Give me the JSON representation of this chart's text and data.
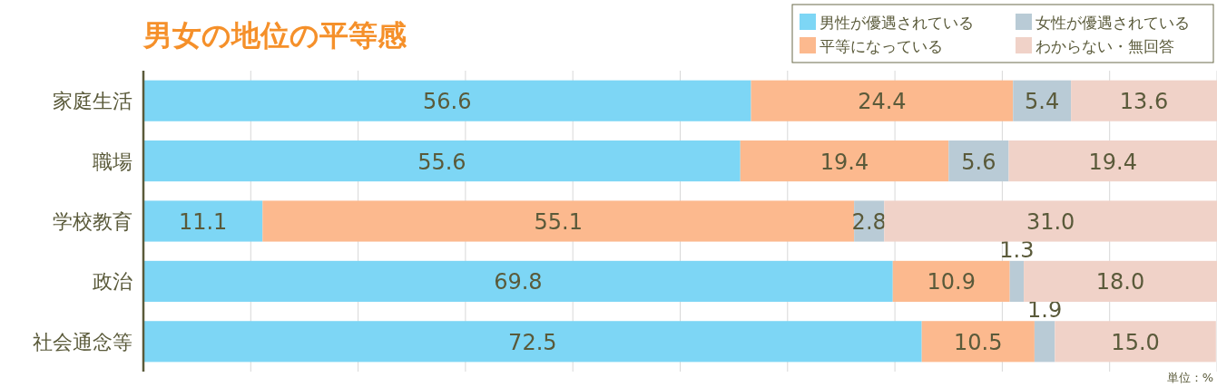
{
  "chart_data": {
    "type": "bar",
    "title": "男女の地位の平等感",
    "orientation": "horizontal",
    "stacked": true,
    "categories": [
      "家庭生活",
      "職場",
      "学校教育",
      "政治",
      "社会通念等"
    ],
    "series": [
      {
        "name": "男性が優遇されている",
        "color": "#7dd6f5",
        "values": [
          56.6,
          55.6,
          11.1,
          69.8,
          72.5
        ],
        "value_labels": [
          "56.6",
          "55.6",
          "11.1",
          "69.8",
          "72.5"
        ]
      },
      {
        "name": "平等になっている",
        "color": "#fcb98e",
        "values": [
          24.4,
          19.4,
          55.1,
          10.9,
          10.5
        ],
        "value_labels": [
          "24.4",
          "19.4",
          "55.1",
          "10.9",
          "10.5"
        ]
      },
      {
        "name": "女性が優遇されている",
        "color": "#b9cbd6",
        "values": [
          5.4,
          5.6,
          2.8,
          1.3,
          1.9
        ],
        "value_labels": [
          "5.4",
          "5.6",
          "2.8",
          "1.3",
          "1.9"
        ]
      },
      {
        "name": "わからない・無回答",
        "color": "#f0d2c8",
        "values": [
          13.6,
          19.4,
          31.0,
          18.0,
          15.0
        ],
        "value_labels": [
          "13.6",
          "19.4",
          "31.0",
          "18.0",
          "15.0"
        ]
      }
    ],
    "xlim": [
      0,
      100
    ],
    "xticks": [
      {
        "value": 0,
        "label": null
      },
      {
        "value": 10,
        "label": null
      },
      {
        "value": 20,
        "label": null
      },
      {
        "value": 30,
        "label": null
      },
      {
        "value": 40,
        "label": null
      },
      {
        "value": 50,
        "label": null
      },
      {
        "value": 60,
        "label": null
      },
      {
        "value": 70,
        "label": null
      },
      {
        "value": 80,
        "label": null
      },
      {
        "value": 90,
        "label": null
      },
      {
        "value": 100,
        "label": null
      }
    ],
    "grid": "x",
    "legend": "top right",
    "annotations": [
      "単位：%"
    ]
  }
}
